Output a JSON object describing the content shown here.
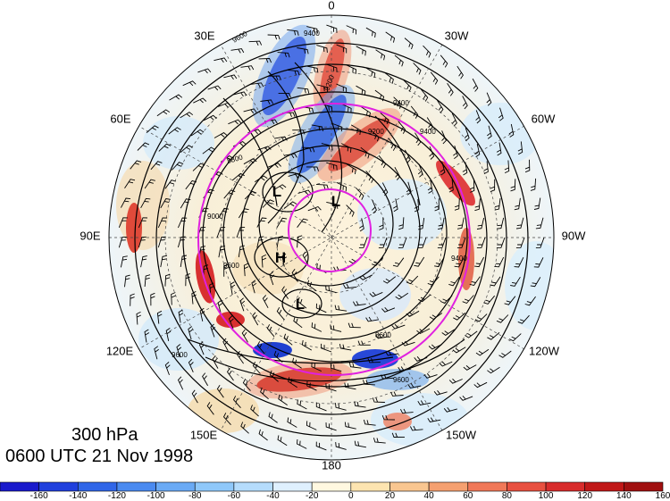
{
  "title": {
    "level": "300 hPa",
    "datetime": "0600 UTC 21 Nov 1998"
  },
  "longitude_labels": [
    "0",
    "30W",
    "60W",
    "90W",
    "120W",
    "150W",
    "180",
    "150E",
    "120E",
    "90E",
    "60E",
    "30E"
  ],
  "pressure_centers": [
    {
      "id": "low-1",
      "label": "L"
    },
    {
      "id": "low-2",
      "label": "L"
    },
    {
      "id": "high-1",
      "label": "H"
    },
    {
      "id": "low-3",
      "label": "L"
    }
  ],
  "contour_labels": [
    "9600",
    "9400",
    "9200",
    "9400",
    "8800",
    "9000",
    "9200",
    "9400",
    "9600",
    "8600",
    "9400",
    "9600",
    "9600"
  ],
  "colorbar": {
    "ticks": [
      "-160",
      "-140",
      "-120",
      "-100",
      "-80",
      "-60",
      "-40",
      "-20",
      "0",
      "20",
      "40",
      "60",
      "80",
      "100",
      "120",
      "140",
      "160"
    ],
    "colors": [
      "#1a1acc",
      "#2040dd",
      "#3066e8",
      "#4a8af0",
      "#6aaaf5",
      "#8fc8fa",
      "#b5dcfc",
      "#dff0fe",
      "#fff8e0",
      "#fde4b0",
      "#f9c690",
      "#f5a070",
      "#f07858",
      "#e85040",
      "#d82c2c",
      "#c01818",
      "#a01010"
    ]
  },
  "colors": {
    "magenta_circle": "#e020e0",
    "contour": "#000000"
  }
}
